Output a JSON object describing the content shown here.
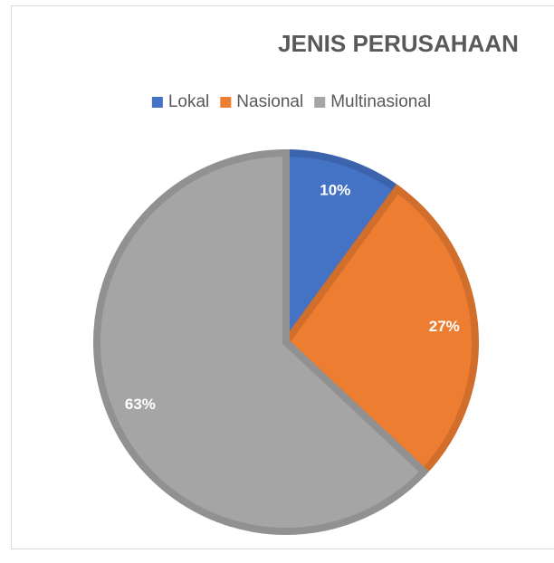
{
  "chart_data": {
    "type": "pie",
    "title": "JENIS PERUSAHAAN",
    "categories": [
      "Lokal",
      "Nasional",
      "Multinasional"
    ],
    "values": [
      10,
      27,
      63
    ],
    "value_labels": [
      "10%",
      "27%",
      "63%"
    ],
    "colors": [
      "#4472c4",
      "#ed7d31",
      "#a5a5a5"
    ],
    "legend": "top"
  }
}
